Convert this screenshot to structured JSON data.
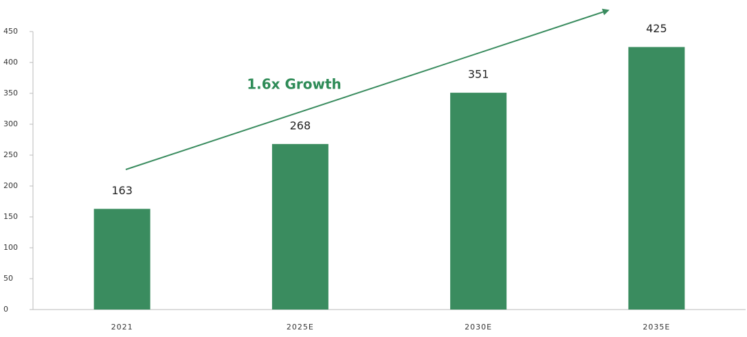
{
  "chart_data": {
    "type": "bar",
    "annotation": "1.6x Growth",
    "categories": [
      "2021",
      "2025E",
      "2030E",
      "2035E"
    ],
    "values": [
      163,
      268,
      351,
      425
    ],
    "color": "#3a8c5f",
    "ylim": [
      0,
      450
    ],
    "yticks": [
      0,
      50,
      100,
      150,
      200,
      250,
      300,
      350,
      400,
      450
    ],
    "grid": false
  }
}
